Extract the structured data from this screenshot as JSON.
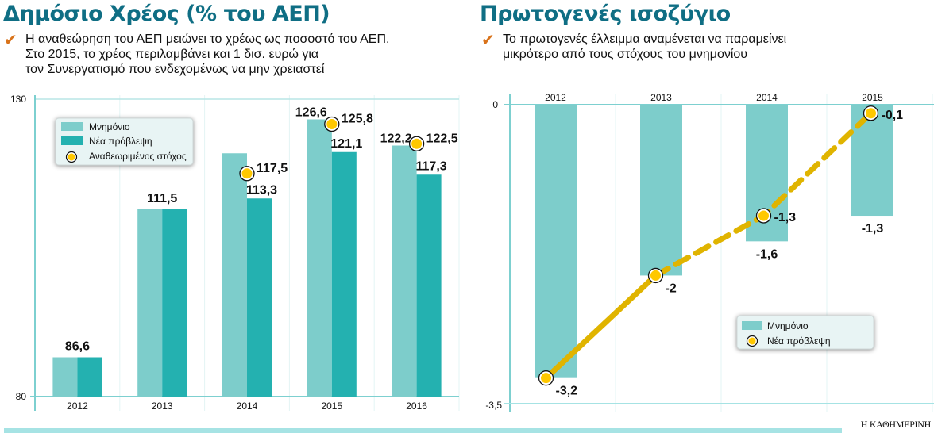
{
  "left": {
    "title": "Δημόσιο Χρέος (% του ΑΕΠ)",
    "subtitle_lines": [
      "Η αναθεώρηση του ΑΕΠ μειώνει το χρέως ως ποσοστό του ΑΕΠ.",
      "Στο 2015, το χρέος περιλαμβάνει και 1 δισ. ευρώ για",
      "τον Συνεργατισμό που ενδεχομένως να μην χρειαστεί"
    ]
  },
  "right": {
    "title": "Πρωτογενές ισοζύγιο",
    "subtitle_lines": [
      "Το πρωτογενές έλλειμμα αναμένεται να παραμείνει",
      "μικρότερο από τους στόχους του μνημονίου"
    ]
  },
  "brand": "Η ΚΑΘΗΜΕΡΙΝΗ",
  "colors": {
    "title": "#0f6e84",
    "mnimonio": "#7dcdcb",
    "nea": "#24b1b0",
    "target": "#ffc800",
    "line": "#e0b400",
    "axis": "#7dd0d0",
    "check": "#d9731b"
  },
  "chart_data": [
    {
      "type": "bar",
      "title": "Δημόσιο Χρέος (% του ΑΕΠ)",
      "categories": [
        "2012",
        "2013",
        "2014",
        "2015",
        "2016"
      ],
      "ylim": [
        80,
        130
      ],
      "yticks": [
        "80",
        "130"
      ],
      "series": [
        {
          "name": "Μνημόνιο",
          "values": [
            86.6,
            111.5,
            120.9,
            126.6,
            122.2
          ],
          "labels": [
            "86,6",
            "111,5",
            "",
            "126,6",
            "122,2"
          ]
        },
        {
          "name": "Νέα πρόβλεψη",
          "values": [
            86.6,
            111.5,
            113.3,
            121.1,
            117.3
          ],
          "labels": [
            "",
            "",
            "113,3",
            "121,1",
            "117,3"
          ]
        },
        {
          "name": "Αναθεωριμένος στόχος",
          "type": "marker",
          "values": [
            null,
            null,
            117.5,
            125.8,
            122.5
          ],
          "labels": [
            "",
            "",
            "117,5",
            "125,8",
            "122,5"
          ]
        }
      ],
      "legend": [
        "Μνημόνιο",
        "Νέα πρόβλεψη",
        "Αναθεωριμένος στόχος"
      ],
      "legend_position": "top-left",
      "grid": true
    },
    {
      "type": "bar",
      "title": "Πρωτογενές ισοζύγιο",
      "categories": [
        "2012",
        "2013",
        "2014",
        "2015"
      ],
      "ylim": [
        -3.5,
        0
      ],
      "yticks": [
        "0",
        "-3,5"
      ],
      "series": [
        {
          "name": "Μνημόνιο",
          "values": [
            -3.2,
            -2.0,
            -1.6,
            -1.3
          ],
          "labels": [
            "",
            "",
            "-1,6",
            "-1,3"
          ]
        },
        {
          "name": "Νέα πρόβλεψη",
          "type": "line",
          "values": [
            -3.2,
            -2.0,
            -1.3,
            -0.1
          ],
          "labels": [
            "-3,2",
            "-2",
            "-1,3",
            "-0,1"
          ],
          "dashed_from_index": 1
        }
      ],
      "legend": [
        "Μνημόνιο",
        "Νέα πρόβλεψη"
      ],
      "legend_position": "bottom-right",
      "grid": true
    }
  ]
}
